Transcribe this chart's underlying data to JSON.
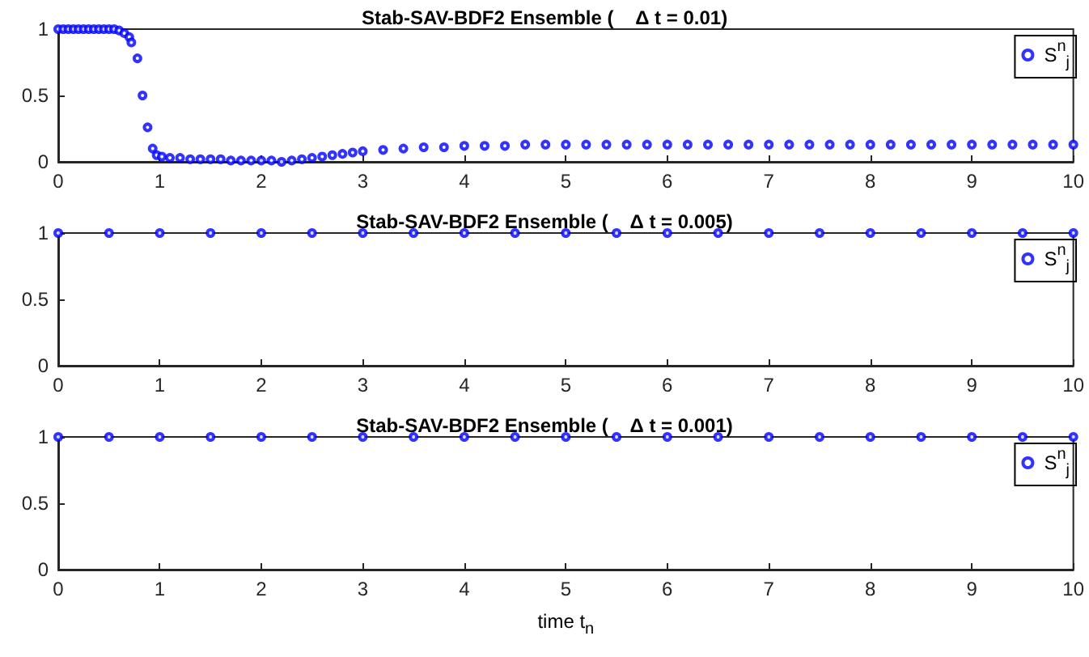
{
  "chart_data": [
    {
      "type": "scatter",
      "title": "Stab-SAV-BDF2 Ensemble (    Δ t = 0.01)",
      "xlim": [
        0,
        10
      ],
      "ylim": [
        0,
        1
      ],
      "xticks": [
        0,
        1,
        2,
        3,
        4,
        5,
        6,
        7,
        8,
        9,
        10
      ],
      "yticks": [
        0,
        0.5,
        1
      ],
      "grid": false,
      "legend": "top right",
      "marker": "circle",
      "series": [
        {
          "name": "S$^{n}$$_{j}$",
          "color": "#0000ff",
          "x": [
            0,
            0.05,
            0.1,
            0.15,
            0.2,
            0.25,
            0.3,
            0.35,
            0.4,
            0.45,
            0.5,
            0.55,
            0.6,
            0.65,
            0.7,
            0.72,
            0.78,
            0.83,
            0.88,
            0.93,
            0.97,
            1.02,
            1.1,
            1.2,
            1.3,
            1.4,
            1.5,
            1.6,
            1.7,
            1.8,
            1.9,
            2.0,
            2.1,
            2.2,
            2.3,
            2.4,
            2.5,
            2.6,
            2.7,
            2.8,
            2.9,
            3.0,
            3.2,
            3.4,
            3.6,
            3.8,
            4.0,
            4.2,
            4.4,
            4.6,
            4.8,
            5.0,
            5.2,
            5.4,
            5.6,
            5.8,
            6.0,
            6.2,
            6.4,
            6.6,
            6.8,
            7.0,
            7.2,
            7.4,
            7.6,
            7.8,
            8.0,
            8.2,
            8.4,
            8.6,
            8.8,
            9.0,
            9.2,
            9.4,
            9.6,
            9.8,
            10
          ],
          "values": [
            1,
            1,
            1,
            1,
            1,
            1,
            1,
            1,
            1,
            1,
            1,
            1,
            0.99,
            0.97,
            0.94,
            0.9,
            0.78,
            0.5,
            0.26,
            0.1,
            0.05,
            0.04,
            0.03,
            0.03,
            0.02,
            0.02,
            0.02,
            0.02,
            0.01,
            0.01,
            0.01,
            0.01,
            0.01,
            0.0,
            0.01,
            0.02,
            0.03,
            0.04,
            0.05,
            0.06,
            0.07,
            0.08,
            0.09,
            0.1,
            0.11,
            0.11,
            0.12,
            0.12,
            0.12,
            0.13,
            0.13,
            0.13,
            0.13,
            0.13,
            0.13,
            0.13,
            0.13,
            0.13,
            0.13,
            0.13,
            0.13,
            0.13,
            0.13,
            0.13,
            0.13,
            0.13,
            0.13,
            0.13,
            0.13,
            0.13,
            0.13,
            0.13,
            0.13,
            0.13,
            0.13,
            0.13,
            0.13
          ]
        }
      ]
    },
    {
      "type": "scatter",
      "title": "Stab-SAV-BDF2 Ensemble (    Δ t = 0.005)",
      "xlim": [
        0,
        10
      ],
      "ylim": [
        0,
        1
      ],
      "xticks": [
        0,
        1,
        2,
        3,
        4,
        5,
        6,
        7,
        8,
        9,
        10
      ],
      "yticks": [
        0,
        0.5,
        1
      ],
      "grid": false,
      "legend": "top right",
      "marker": "circle",
      "series": [
        {
          "name": "S$^{n}$$_{j}$",
          "color": "#0000ff",
          "x": [
            0,
            0.5,
            1,
            1.5,
            2,
            2.5,
            3,
            3.5,
            4,
            4.5,
            5,
            5.5,
            6,
            6.5,
            7,
            7.5,
            8,
            8.5,
            9,
            9.5,
            10
          ],
          "values": [
            1,
            1,
            1,
            1,
            1,
            1,
            1,
            1,
            1,
            1,
            1,
            1,
            1,
            1,
            1,
            1,
            1,
            1,
            1,
            1,
            1
          ]
        }
      ]
    },
    {
      "type": "scatter",
      "title": "Stab-SAV-BDF2 Ensemble (    Δ t = 0.001)",
      "xlabel": "time t$_{n}$",
      "xlim": [
        0,
        10
      ],
      "ylim": [
        0,
        1
      ],
      "xticks": [
        0,
        1,
        2,
        3,
        4,
        5,
        6,
        7,
        8,
        9,
        10
      ],
      "yticks": [
        0,
        0.5,
        1
      ],
      "grid": false,
      "legend": "top right",
      "marker": "circle",
      "series": [
        {
          "name": "S$^{n}$$_{j}$",
          "color": "#0000ff",
          "x": [
            0,
            0.5,
            1,
            1.5,
            2,
            2.5,
            3,
            3.5,
            4,
            4.5,
            5,
            5.5,
            6,
            6.5,
            7,
            7.5,
            8,
            8.5,
            9,
            9.5,
            10
          ],
          "values": [
            1,
            1,
            1,
            1,
            1,
            1,
            1,
            1,
            1,
            1,
            1,
            1,
            1,
            1,
            1,
            1,
            1,
            1,
            1,
            1,
            1
          ]
        }
      ]
    }
  ]
}
